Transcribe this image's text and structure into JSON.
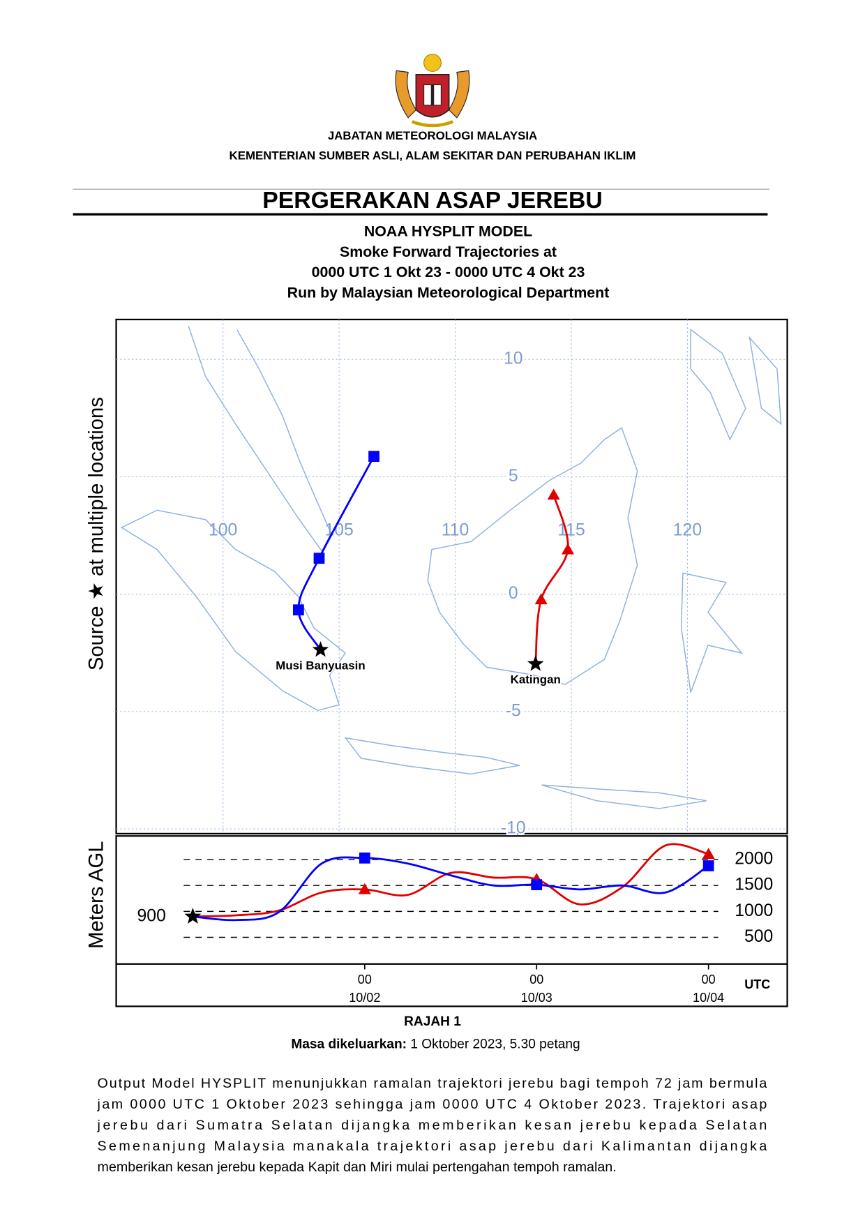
{
  "header": {
    "agency": "JABATAN METEOROLOGI MALAYSIA",
    "ministry": "KEMENTERIAN SUMBER ASLI, ALAM SEKITAR DAN PERUBAHAN IKLIM"
  },
  "title": "PERGERAKAN ASAP JEREBU",
  "subtitle_lines": [
    "NOAA HYSPLIT MODEL",
    "Smoke Forward Trajectories at",
    "0000 UTC 1 Okt 23 - 0000 UTC 4 Okt 23",
    "Run by Malaysian Meteorological Department"
  ],
  "map": {
    "type": "trajectory",
    "y_label": "Source ★ at multiple locations",
    "xlim": [
      95.4,
      124.3
    ],
    "ylim": [
      -10.2,
      11.7
    ],
    "xticks": [
      100,
      105,
      110,
      115,
      120
    ],
    "yticks": [
      10,
      5,
      0,
      -5,
      -10
    ],
    "series": [
      {
        "name": "Musi Banyuasin",
        "color": "#0000ff",
        "marker": "square",
        "lon": [
          104.2,
          103.25,
          104.14,
          106.5
        ],
        "lat": [
          -2.37,
          -0.67,
          1.53,
          5.87
        ]
      },
      {
        "name": "Katingan",
        "color": "#e00000",
        "marker": "triangle",
        "lon": [
          113.46,
          113.7,
          114.85,
          114.24
        ],
        "lat": [
          -2.97,
          -0.23,
          1.9,
          4.23
        ]
      }
    ]
  },
  "height": {
    "type": "line",
    "y_label": "Meters AGL",
    "x_unit": "UTC",
    "start_height": 900,
    "x": [
      0,
      6,
      12,
      18,
      24,
      30,
      36,
      42,
      48,
      54,
      60,
      66,
      72
    ],
    "xlim": [
      -10.7,
      83
    ],
    "ylim": [
      -15,
      2455
    ],
    "yticks": [
      500,
      1000,
      1500,
      2000
    ],
    "xticks": [
      {
        "value": 24,
        "label": "00"
      },
      {
        "value": 48,
        "label": "00"
      },
      {
        "value": 72,
        "label": "00"
      }
    ],
    "xtick_dates": [
      "10/02",
      "10/03",
      "10/04"
    ],
    "series": [
      {
        "color": "#e00000",
        "marker": "triangle",
        "values": [
          900,
          924,
          1015,
          1364,
          1424,
          1318,
          1742,
          1652,
          1620,
          1136,
          1470,
          2273,
          2106
        ]
      },
      {
        "color": "#0000ff",
        "marker": "square",
        "values": [
          900,
          833,
          985,
          1924,
          2030,
          1924,
          1697,
          1500,
          1515,
          1424,
          1500,
          1364,
          1880
        ]
      }
    ]
  },
  "caption": "RAJAH 1",
  "issued_label": "Masa dikeluarkan:",
  "issued_value": "1 Oktober 2023, 5.30 petang",
  "body_lines": [
    "Output Model HYSPLIT menunjukkan ramalan trajektori jerebu bagi tempoh 72 jam bermula",
    "jam 0000 UTC 1 Oktober 2023 sehingga jam 0000 UTC 4 Oktober 2023. Trajektori asap",
    "jerebu dari Sumatra Selatan dijangka memberikan kesan jerebu kepada Selatan",
    "Semenanjung Malaysia manakala trajektori asap jerebu dari Kalimantan dijangka",
    "memberikan kesan jerebu kepada Kapit dan Miri  mulai pertengahan tempoh ramalan."
  ]
}
